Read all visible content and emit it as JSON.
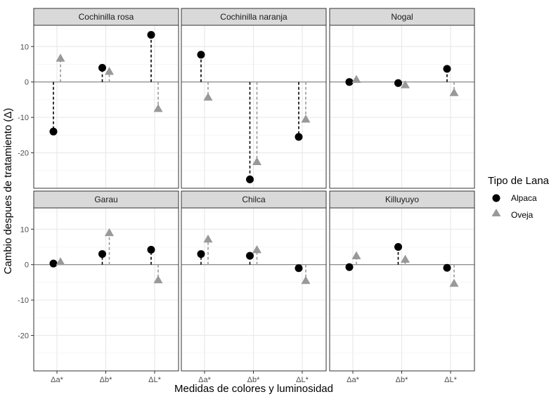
{
  "chart_data": {
    "type": "scatter",
    "xlabel": "Medidas de colores y luminosidad",
    "ylabel": "Cambio despues de tratamiento (Δ)",
    "categories": [
      "Δa*",
      "Δb*",
      "ΔL*"
    ],
    "ylim": [
      -30,
      16
    ],
    "yticks": [
      10,
      0,
      -10,
      -20
    ],
    "grid": true,
    "legend": {
      "title": "Tipo de Lana",
      "placement": "right",
      "entries": [
        {
          "name": "Alpaca",
          "marker": "circle",
          "color": "#000000"
        },
        {
          "name": "Oveja",
          "marker": "triangle",
          "color": "#999999"
        }
      ]
    },
    "panels": [
      {
        "title": "Cochinilla rosa",
        "series": [
          {
            "name": "Alpaca",
            "values": [
              -14,
              4,
              13.3
            ]
          },
          {
            "name": "Oveja",
            "values": [
              6.7,
              3,
              -7.5
            ]
          }
        ]
      },
      {
        "title": "Cochinilla naranja",
        "series": [
          {
            "name": "Alpaca",
            "values": [
              7.7,
              -27.5,
              -15.5
            ]
          },
          {
            "name": "Oveja",
            "values": [
              -4.3,
              -22.5,
              -10.5
            ]
          }
        ]
      },
      {
        "title": "Nogal",
        "series": [
          {
            "name": "Alpaca",
            "values": [
              0,
              -0.3,
              3.7
            ]
          },
          {
            "name": "Oveja",
            "values": [
              0.7,
              -0.8,
              -3
            ]
          }
        ]
      },
      {
        "title": "Garau",
        "series": [
          {
            "name": "Alpaca",
            "values": [
              0.3,
              3,
              4.2
            ]
          },
          {
            "name": "Oveja",
            "values": [
              0.8,
              9,
              -4.3
            ]
          }
        ]
      },
      {
        "title": "Chilca",
        "series": [
          {
            "name": "Alpaca",
            "values": [
              3,
              2.5,
              -1
            ]
          },
          {
            "name": "Oveja",
            "values": [
              7.2,
              4.2,
              -4.5
            ]
          }
        ]
      },
      {
        "title": "Killuyuyo",
        "series": [
          {
            "name": "Alpaca",
            "values": [
              -0.7,
              5,
              -0.9
            ]
          },
          {
            "name": "Oveja",
            "values": [
              2.5,
              1.5,
              -5.3
            ]
          }
        ]
      }
    ]
  }
}
